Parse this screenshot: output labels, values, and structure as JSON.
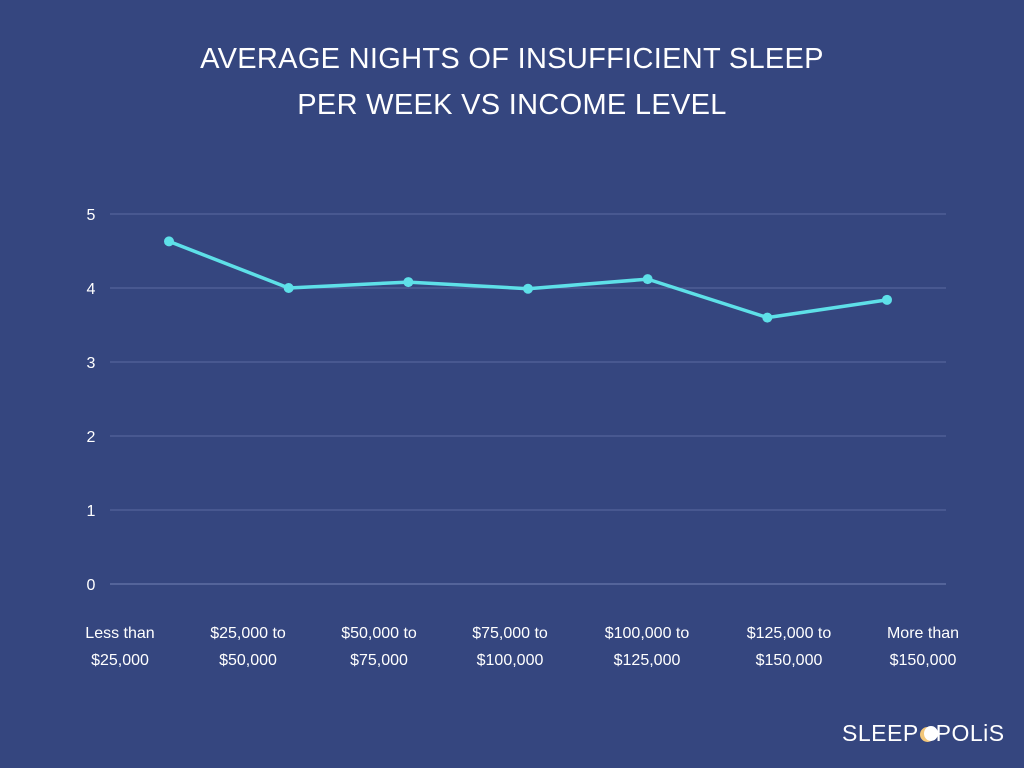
{
  "chart_data": {
    "type": "line",
    "title_lines": [
      "AVERAGE NIGHTS OF INSUFFICIENT SLEEP",
      "PER WEEK VS INCOME LEVEL"
    ],
    "categories": [
      [
        "Less than",
        "$25,000"
      ],
      [
        "$25,000 to",
        "$50,000"
      ],
      [
        "$50,000 to",
        "$75,000"
      ],
      [
        "$75,000 to",
        "$100,000"
      ],
      [
        "$100,000 to",
        "$125,000"
      ],
      [
        "$125,000 to",
        "$150,000"
      ],
      [
        "More than",
        "$150,000"
      ]
    ],
    "series": [
      {
        "name": "Average nights of insufficient sleep",
        "values": [
          4.63,
          4.0,
          4.08,
          3.99,
          4.12,
          3.6,
          3.84
        ],
        "color": "#5ee0e8"
      }
    ],
    "yticks": [
      0,
      1,
      2,
      3,
      4,
      5
    ],
    "ylim": [
      0,
      5
    ],
    "xlabel": "",
    "ylabel": "",
    "grid": true,
    "legend": "none"
  },
  "brand": {
    "logo_text_before": "SLEEP",
    "logo_text_after": "POLiS",
    "moon_color": "#f3c77a"
  },
  "colors": {
    "background": "#35467f",
    "gridline": "#5b6ba1",
    "line": "#5ee0e8"
  }
}
